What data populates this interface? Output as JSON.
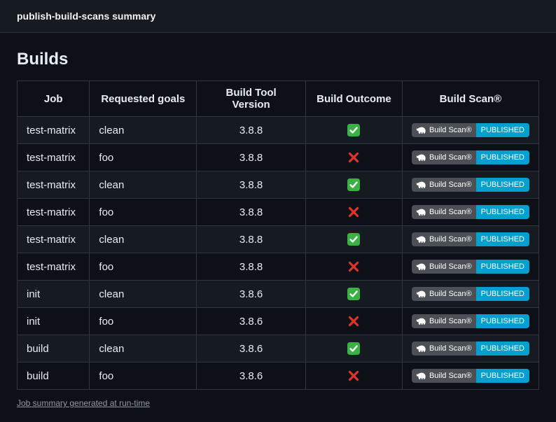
{
  "header": {
    "title": "publish-build-scans summary"
  },
  "section": {
    "title": "Builds"
  },
  "table": {
    "columns": [
      {
        "key": "job",
        "label": "Job"
      },
      {
        "key": "requested-goals",
        "label": "Requested goals"
      },
      {
        "key": "build-tool-version",
        "label": "Build Tool Version"
      },
      {
        "key": "build-outcome",
        "label": "Build Outcome"
      },
      {
        "key": "build-scan",
        "label": "Build Scan®"
      }
    ],
    "rows": [
      {
        "job": "test-matrix",
        "requested_goals": "clean",
        "build_tool_version": "3.8.8",
        "build_outcome": "success"
      },
      {
        "job": "test-matrix",
        "requested_goals": "foo",
        "build_tool_version": "3.8.8",
        "build_outcome": "failure"
      },
      {
        "job": "test-matrix",
        "requested_goals": "clean",
        "build_tool_version": "3.8.8",
        "build_outcome": "success"
      },
      {
        "job": "test-matrix",
        "requested_goals": "foo",
        "build_tool_version": "3.8.8",
        "build_outcome": "failure"
      },
      {
        "job": "test-matrix",
        "requested_goals": "clean",
        "build_tool_version": "3.8.8",
        "build_outcome": "success"
      },
      {
        "job": "test-matrix",
        "requested_goals": "foo",
        "build_tool_version": "3.8.8",
        "build_outcome": "failure"
      },
      {
        "job": "init",
        "requested_goals": "clean",
        "build_tool_version": "3.8.6",
        "build_outcome": "success"
      },
      {
        "job": "init",
        "requested_goals": "foo",
        "build_tool_version": "3.8.6",
        "build_outcome": "failure"
      },
      {
        "job": "build",
        "requested_goals": "clean",
        "build_tool_version": "3.8.6",
        "build_outcome": "success"
      },
      {
        "job": "build",
        "requested_goals": "foo",
        "build_tool_version": "3.8.6",
        "build_outcome": "failure"
      }
    ]
  },
  "badge": {
    "label": "Build Scan®",
    "status": "PUBLISHED"
  },
  "footer": {
    "link_text": "Job summary generated at run-time"
  },
  "icons": {
    "success": "green-check-icon",
    "failure": "red-cross-icon",
    "badge_logo": "gradle-elephant-icon"
  },
  "colors": {
    "page_bg": "#0d1117",
    "topbar_bg": "#161b22",
    "row_alt_bg": "#161b22",
    "table_border": "#30363d",
    "success_green": "#3bb143",
    "failure_red": "#e0332c",
    "badge_label_bg": "#4a5056",
    "badge_status_bg": "#06a0ce",
    "link_gray": "#9198a1"
  }
}
